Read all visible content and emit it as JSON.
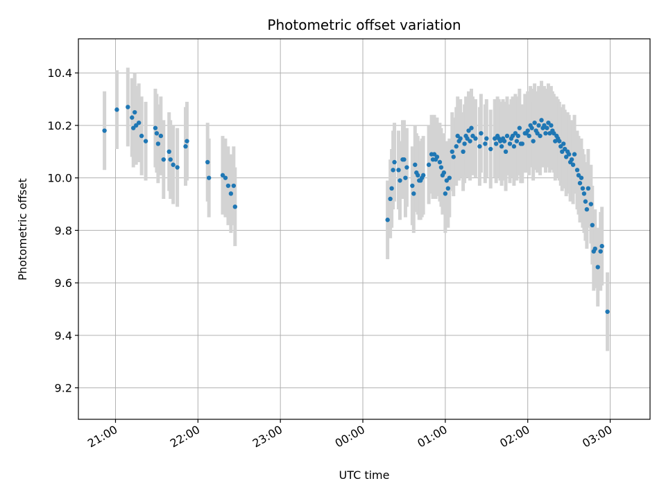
{
  "chart_data": {
    "type": "scatter",
    "title": "Photometric offset variation",
    "xlabel": "UTC time",
    "ylabel": "Photometric offset",
    "x_unit": "UTC time (HH:MM, night spanning midnight)",
    "xlim": [
      "20:33",
      "03:29"
    ],
    "ylim": [
      9.08,
      10.53
    ],
    "x_ticks": [
      "21:00",
      "22:00",
      "23:00",
      "00:00",
      "01:00",
      "02:00",
      "03:00"
    ],
    "y_ticks": [
      9.2,
      9.4,
      9.6,
      9.8,
      10.0,
      10.2,
      10.4
    ],
    "y_tick_labels": [
      "9.2",
      "9.4",
      "9.6",
      "9.8",
      "10.0",
      "10.2",
      "10.4"
    ],
    "grid": true,
    "colors": {
      "point": "#1f77b4",
      "errorbar": "#d3d3d3",
      "grid": "#b0b0b0"
    },
    "series": [
      {
        "y_error": 0.15,
        "points": [
          {
            "x": "20:52",
            "y": 10.18
          },
          {
            "x": "21:01",
            "y": 10.26
          },
          {
            "x": "21:09",
            "y": 10.27
          },
          {
            "x": "21:12",
            "y": 10.23
          },
          {
            "x": "21:13",
            "y": 10.19
          },
          {
            "x": "21:14",
            "y": 10.25
          },
          {
            "x": "21:15",
            "y": 10.2
          },
          {
            "x": "21:17",
            "y": 10.21
          },
          {
            "x": "21:19",
            "y": 10.16
          },
          {
            "x": "21:22",
            "y": 10.14
          },
          {
            "x": "21:29",
            "y": 10.19
          },
          {
            "x": "21:30",
            "y": 10.17
          },
          {
            "x": "21:31",
            "y": 10.13
          },
          {
            "x": "21:33",
            "y": 10.16
          },
          {
            "x": "21:35",
            "y": 10.07
          },
          {
            "x": "21:39",
            "y": 10.1
          },
          {
            "x": "21:40",
            "y": 10.07
          },
          {
            "x": "21:42",
            "y": 10.05
          },
          {
            "x": "21:45",
            "y": 10.04
          },
          {
            "x": "21:51",
            "y": 10.12
          },
          {
            "x": "21:52",
            "y": 10.14
          },
          {
            "x": "22:07",
            "y": 10.06
          },
          {
            "x": "22:08",
            "y": 10.0
          },
          {
            "x": "22:18",
            "y": 10.01
          },
          {
            "x": "22:20",
            "y": 10.0
          },
          {
            "x": "22:22",
            "y": 9.97
          },
          {
            "x": "22:24",
            "y": 9.94
          },
          {
            "x": "22:26",
            "y": 9.97
          },
          {
            "x": "22:27",
            "y": 9.89
          },
          {
            "x": "00:18",
            "y": 9.84
          },
          {
            "x": "00:20",
            "y": 9.92
          },
          {
            "x": "00:21",
            "y": 9.96
          },
          {
            "x": "00:22",
            "y": 10.03
          },
          {
            "x": "00:23",
            "y": 10.06
          },
          {
            "x": "00:26",
            "y": 10.03
          },
          {
            "x": "00:27",
            "y": 9.99
          },
          {
            "x": "00:29",
            "y": 10.07
          },
          {
            "x": "00:30",
            "y": 10.07
          },
          {
            "x": "00:31",
            "y": 10.0
          },
          {
            "x": "00:32",
            "y": 10.04
          },
          {
            "x": "00:36",
            "y": 9.97
          },
          {
            "x": "00:37",
            "y": 9.94
          },
          {
            "x": "00:38",
            "y": 10.05
          },
          {
            "x": "00:39",
            "y": 10.02
          },
          {
            "x": "00:40",
            "y": 10.01
          },
          {
            "x": "00:41",
            "y": 9.99
          },
          {
            "x": "00:42",
            "y": 9.99
          },
          {
            "x": "00:43",
            "y": 10.0
          },
          {
            "x": "00:44",
            "y": 10.01
          },
          {
            "x": "00:48",
            "y": 10.05
          },
          {
            "x": "00:50",
            "y": 10.09
          },
          {
            "x": "00:51",
            "y": 10.07
          },
          {
            "x": "00:52",
            "y": 10.09
          },
          {
            "x": "00:53",
            "y": 10.07
          },
          {
            "x": "00:54",
            "y": 10.08
          },
          {
            "x": "00:56",
            "y": 10.06
          },
          {
            "x": "00:57",
            "y": 10.04
          },
          {
            "x": "00:58",
            "y": 10.01
          },
          {
            "x": "00:59",
            "y": 10.02
          },
          {
            "x": "01:00",
            "y": 9.94
          },
          {
            "x": "01:01",
            "y": 9.99
          },
          {
            "x": "01:02",
            "y": 9.96
          },
          {
            "x": "01:03",
            "y": 10.0
          },
          {
            "x": "01:05",
            "y": 10.1
          },
          {
            "x": "01:06",
            "y": 10.08
          },
          {
            "x": "01:08",
            "y": 10.12
          },
          {
            "x": "01:09",
            "y": 10.16
          },
          {
            "x": "01:10",
            "y": 10.14
          },
          {
            "x": "01:11",
            "y": 10.15
          },
          {
            "x": "01:13",
            "y": 10.1
          },
          {
            "x": "01:14",
            "y": 10.13
          },
          {
            "x": "01:15",
            "y": 10.16
          },
          {
            "x": "01:16",
            "y": 10.15
          },
          {
            "x": "01:17",
            "y": 10.18
          },
          {
            "x": "01:18",
            "y": 10.14
          },
          {
            "x": "01:19",
            "y": 10.19
          },
          {
            "x": "01:20",
            "y": 10.16
          },
          {
            "x": "01:22",
            "y": 10.15
          },
          {
            "x": "01:25",
            "y": 10.12
          },
          {
            "x": "01:26",
            "y": 10.17
          },
          {
            "x": "01:29",
            "y": 10.13
          },
          {
            "x": "01:30",
            "y": 10.15
          },
          {
            "x": "01:33",
            "y": 10.11
          },
          {
            "x": "01:36",
            "y": 10.15
          },
          {
            "x": "01:37",
            "y": 10.13
          },
          {
            "x": "01:38",
            "y": 10.16
          },
          {
            "x": "01:39",
            "y": 10.15
          },
          {
            "x": "01:40",
            "y": 10.14
          },
          {
            "x": "01:41",
            "y": 10.12
          },
          {
            "x": "01:42",
            "y": 10.15
          },
          {
            "x": "01:43",
            "y": 10.14
          },
          {
            "x": "01:44",
            "y": 10.1
          },
          {
            "x": "01:45",
            "y": 10.16
          },
          {
            "x": "01:47",
            "y": 10.13
          },
          {
            "x": "01:48",
            "y": 10.15
          },
          {
            "x": "01:49",
            "y": 10.16
          },
          {
            "x": "01:50",
            "y": 10.12
          },
          {
            "x": "01:51",
            "y": 10.17
          },
          {
            "x": "01:52",
            "y": 10.14
          },
          {
            "x": "01:53",
            "y": 10.16
          },
          {
            "x": "01:54",
            "y": 10.19
          },
          {
            "x": "01:55",
            "y": 10.13
          },
          {
            "x": "01:56",
            "y": 10.13
          },
          {
            "x": "01:58",
            "y": 10.17
          },
          {
            "x": "01:59",
            "y": 10.17
          },
          {
            "x": "02:00",
            "y": 10.18
          },
          {
            "x": "02:01",
            "y": 10.16
          },
          {
            "x": "02:02",
            "y": 10.2
          },
          {
            "x": "02:03",
            "y": 10.19
          },
          {
            "x": "02:04",
            "y": 10.14
          },
          {
            "x": "02:05",
            "y": 10.21
          },
          {
            "x": "02:06",
            "y": 10.18
          },
          {
            "x": "02:07",
            "y": 10.17
          },
          {
            "x": "02:08",
            "y": 10.2
          },
          {
            "x": "02:09",
            "y": 10.16
          },
          {
            "x": "02:10",
            "y": 10.22
          },
          {
            "x": "02:11",
            "y": 10.19
          },
          {
            "x": "02:12",
            "y": 10.2
          },
          {
            "x": "02:13",
            "y": 10.17
          },
          {
            "x": "02:14",
            "y": 10.19
          },
          {
            "x": "02:15",
            "y": 10.21
          },
          {
            "x": "02:16",
            "y": 10.17
          },
          {
            "x": "02:17",
            "y": 10.2
          },
          {
            "x": "02:18",
            "y": 10.18
          },
          {
            "x": "02:19",
            "y": 10.17
          },
          {
            "x": "02:20",
            "y": 10.14
          },
          {
            "x": "02:21",
            "y": 10.16
          },
          {
            "x": "02:22",
            "y": 10.15
          },
          {
            "x": "02:23",
            "y": 10.14
          },
          {
            "x": "02:24",
            "y": 10.12
          },
          {
            "x": "02:25",
            "y": 10.1
          },
          {
            "x": "02:26",
            "y": 10.13
          },
          {
            "x": "02:27",
            "y": 10.11
          },
          {
            "x": "02:28",
            "y": 10.08
          },
          {
            "x": "02:29",
            "y": 10.1
          },
          {
            "x": "02:30",
            "y": 10.09
          },
          {
            "x": "02:31",
            "y": 10.06
          },
          {
            "x": "02:32",
            "y": 10.07
          },
          {
            "x": "02:33",
            "y": 10.05
          },
          {
            "x": "02:34",
            "y": 10.09
          },
          {
            "x": "02:36",
            "y": 10.03
          },
          {
            "x": "02:37",
            "y": 10.01
          },
          {
            "x": "02:38",
            "y": 9.98
          },
          {
            "x": "02:39",
            "y": 10.0
          },
          {
            "x": "02:40",
            "y": 9.96
          },
          {
            "x": "02:41",
            "y": 9.94
          },
          {
            "x": "02:42",
            "y": 9.91
          },
          {
            "x": "02:43",
            "y": 9.88
          },
          {
            "x": "02:44",
            "y": 9.96
          },
          {
            "x": "02:46",
            "y": 9.9
          },
          {
            "x": "02:47",
            "y": 9.82
          },
          {
            "x": "02:48",
            "y": 9.72
          },
          {
            "x": "02:49",
            "y": 9.73
          },
          {
            "x": "02:51",
            "y": 9.66
          },
          {
            "x": "02:53",
            "y": 9.72
          },
          {
            "x": "02:54",
            "y": 9.74
          },
          {
            "x": "02:58",
            "y": 9.49
          }
        ]
      }
    ]
  }
}
